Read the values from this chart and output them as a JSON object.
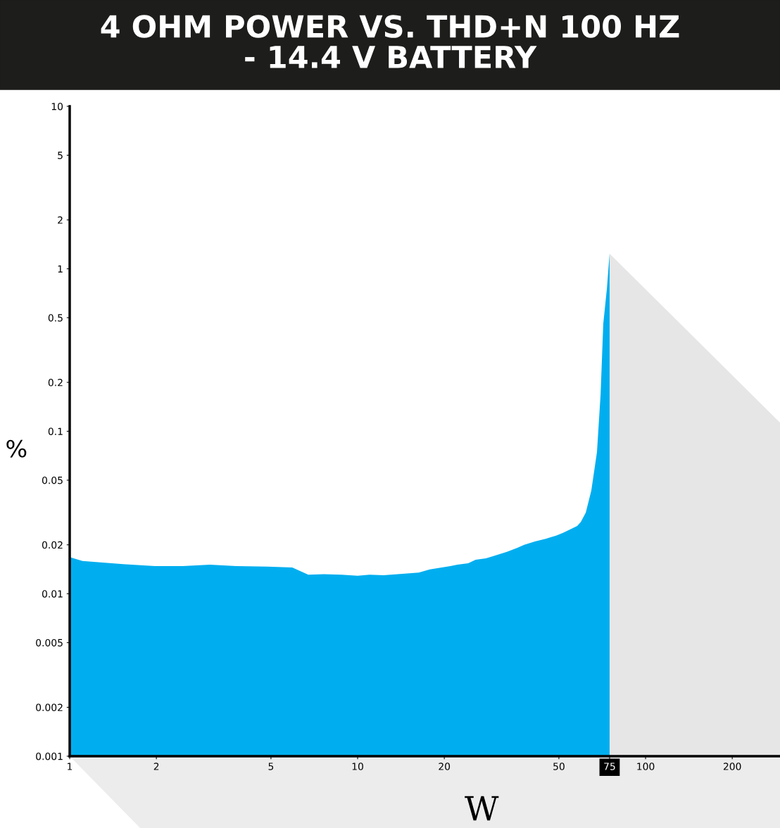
{
  "chart_data": {
    "type": "area",
    "title": "4 OHM POWER VS. THD+N 100 HZ\n- 14.4 V BATTERY",
    "xlabel": "W",
    "ylabel": "%",
    "log": "xy",
    "grid": false,
    "xlim": [
      1,
      293
    ],
    "xticks": [
      1,
      2,
      5,
      10,
      20,
      50,
      75,
      100,
      200
    ],
    "ylim": [
      0.001,
      10
    ],
    "yticks": [
      0.001,
      0.002,
      0.005,
      0.01,
      0.02,
      0.05,
      0.1,
      0.2,
      0.5,
      1,
      2,
      5,
      10
    ],
    "series": [
      {
        "color": "#00aeef",
        "x": [
          1,
          1.107,
          1.534,
          1.976,
          2.47,
          3.07,
          3.78,
          4.86,
          5.93,
          6.74,
          7.64,
          8.79,
          10,
          11.0,
          12.3,
          16.3,
          17.8,
          21.0,
          22.2,
          24.2,
          25.7,
          27.9,
          29.5,
          33.0,
          35.9,
          37.9,
          41.3,
          45.0,
          48.9,
          51.7,
          55.3,
          57.9,
          59.6,
          62.0,
          64.8,
          67.8,
          69.8,
          71.3,
          73.4,
          75
        ],
        "values": [
          0.0168,
          0.0159,
          0.0152,
          0.0148,
          0.0148,
          0.0151,
          0.0148,
          0.0147,
          0.0145,
          0.0131,
          0.0132,
          0.0131,
          0.0129,
          0.0131,
          0.013,
          0.0135,
          0.0141,
          0.0148,
          0.0151,
          0.0154,
          0.0162,
          0.0165,
          0.017,
          0.0181,
          0.0192,
          0.02,
          0.021,
          0.0218,
          0.0228,
          0.0237,
          0.0251,
          0.0261,
          0.0277,
          0.0316,
          0.0431,
          0.0745,
          0.169,
          0.458,
          0.755,
          1.24
        ]
      }
    ]
  }
}
